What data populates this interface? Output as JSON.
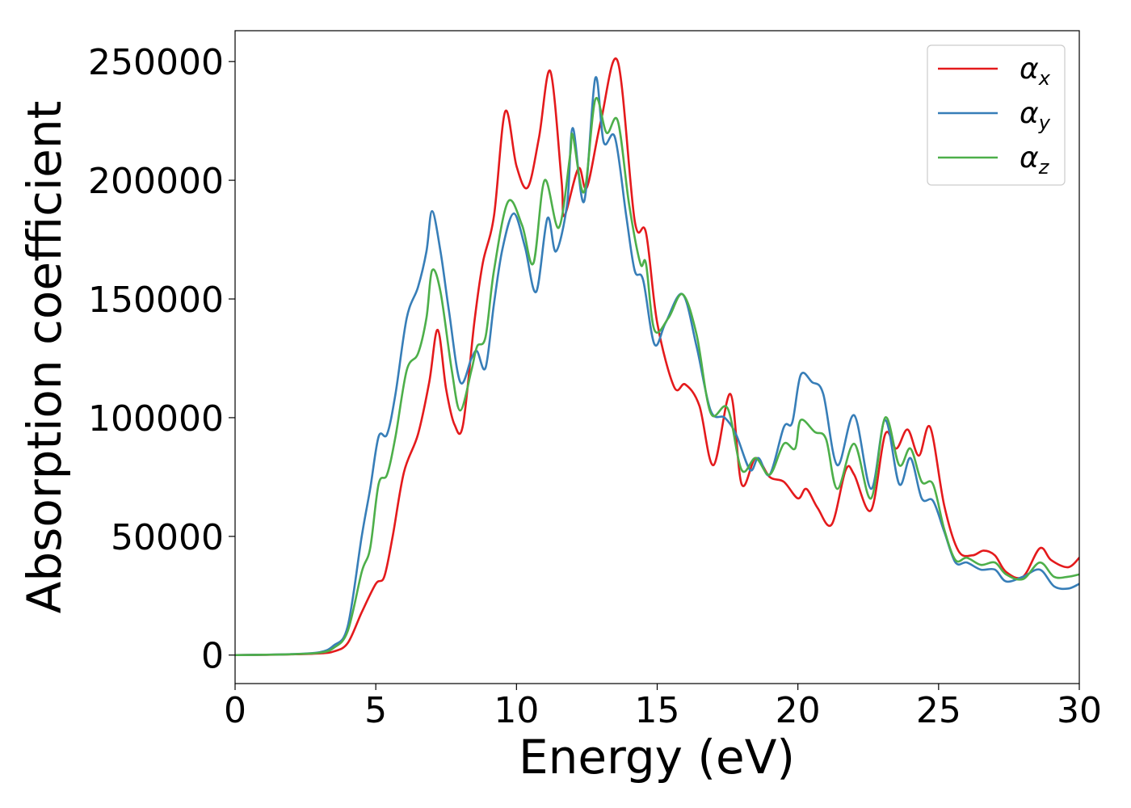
{
  "chart_data": {
    "type": "line",
    "title": "",
    "xlabel": "Energy (eV)",
    "ylabel": "Absorption coefficient",
    "xlim": [
      0,
      30
    ],
    "ylim": [
      -12000,
      263000
    ],
    "x_ticks": [
      "0",
      "5",
      "10",
      "15",
      "20",
      "25",
      "30"
    ],
    "y_ticks": [
      "0",
      "50000",
      "100000",
      "150000",
      "200000",
      "250000"
    ],
    "grid": false,
    "legend_position": "top-right",
    "series": [
      {
        "name": "α",
        "subscript": "x",
        "color": "#e41a1c",
        "points": [
          [
            0,
            0
          ],
          [
            1,
            100
          ],
          [
            2,
            300
          ],
          [
            3,
            700
          ],
          [
            3.5,
            1500
          ],
          [
            4,
            5000
          ],
          [
            4.5,
            18000
          ],
          [
            5,
            30000
          ],
          [
            5.3,
            33000
          ],
          [
            5.6,
            50000
          ],
          [
            6,
            77000
          ],
          [
            6.5,
            93000
          ],
          [
            6.9,
            115000
          ],
          [
            7.2,
            137000
          ],
          [
            7.5,
            112000
          ],
          [
            7.8,
            97000
          ],
          [
            8.1,
            97000
          ],
          [
            8.5,
            140000
          ],
          [
            8.8,
            165000
          ],
          [
            9.2,
            185000
          ],
          [
            9.6,
            229000
          ],
          [
            10.0,
            206000
          ],
          [
            10.4,
            197000
          ],
          [
            10.8,
            218000
          ],
          [
            11.2,
            246000
          ],
          [
            11.6,
            200000
          ],
          [
            11.7,
            185000
          ],
          [
            12.2,
            205000
          ],
          [
            12.5,
            197000
          ],
          [
            13.0,
            225000
          ],
          [
            13.6,
            250000
          ],
          [
            14.2,
            183000
          ],
          [
            14.6,
            178000
          ],
          [
            15.0,
            140000
          ],
          [
            15.6,
            113000
          ],
          [
            16.0,
            114000
          ],
          [
            16.5,
            105000
          ],
          [
            17.0,
            80000
          ],
          [
            17.6,
            110000
          ],
          [
            18.0,
            72000
          ],
          [
            18.5,
            83000
          ],
          [
            19.0,
            75000
          ],
          [
            19.5,
            73000
          ],
          [
            20.0,
            66000
          ],
          [
            20.3,
            70000
          ],
          [
            20.7,
            62000
          ],
          [
            21.2,
            55000
          ],
          [
            21.7,
            78000
          ],
          [
            22.0,
            76000
          ],
          [
            22.6,
            61000
          ],
          [
            23.1,
            93000
          ],
          [
            23.5,
            87000
          ],
          [
            23.9,
            95000
          ],
          [
            24.3,
            84000
          ],
          [
            24.7,
            96000
          ],
          [
            25.2,
            63000
          ],
          [
            25.7,
            44000
          ],
          [
            26.2,
            42000
          ],
          [
            26.6,
            44000
          ],
          [
            27.0,
            42000
          ],
          [
            27.4,
            35000
          ],
          [
            28.0,
            33000
          ],
          [
            28.6,
            45000
          ],
          [
            29.0,
            40000
          ],
          [
            29.6,
            37000
          ],
          [
            30,
            41000
          ]
        ]
      },
      {
        "name": "α",
        "subscript": "y",
        "color": "#377eb8",
        "points": [
          [
            0,
            0
          ],
          [
            1,
            150
          ],
          [
            2,
            400
          ],
          [
            3,
            1200
          ],
          [
            3.5,
            4000
          ],
          [
            4,
            12000
          ],
          [
            4.5,
            50000
          ],
          [
            4.8,
            70000
          ],
          [
            5.1,
            92000
          ],
          [
            5.4,
            93000
          ],
          [
            5.7,
            110000
          ],
          [
            6.1,
            142000
          ],
          [
            6.5,
            155000
          ],
          [
            6.8,
            170000
          ],
          [
            7.0,
            187000
          ],
          [
            7.3,
            170000
          ],
          [
            7.6,
            145000
          ],
          [
            8.0,
            115000
          ],
          [
            8.4,
            125000
          ],
          [
            8.6,
            128000
          ],
          [
            8.9,
            121000
          ],
          [
            9.2,
            148000
          ],
          [
            9.5,
            171000
          ],
          [
            9.9,
            186000
          ],
          [
            10.3,
            172000
          ],
          [
            10.7,
            153000
          ],
          [
            11.1,
            184000
          ],
          [
            11.4,
            170000
          ],
          [
            11.8,
            190000
          ],
          [
            12.0,
            222000
          ],
          [
            12.4,
            191000
          ],
          [
            12.8,
            243000
          ],
          [
            13.1,
            216000
          ],
          [
            13.5,
            218000
          ],
          [
            13.9,
            185000
          ],
          [
            14.2,
            162000
          ],
          [
            14.5,
            158000
          ],
          [
            14.9,
            131000
          ],
          [
            15.3,
            140000
          ],
          [
            15.9,
            152000
          ],
          [
            16.4,
            130000
          ],
          [
            16.9,
            103000
          ],
          [
            17.4,
            100000
          ],
          [
            17.8,
            93000
          ],
          [
            18.3,
            78000
          ],
          [
            18.6,
            83000
          ],
          [
            19.0,
            76000
          ],
          [
            19.5,
            96000
          ],
          [
            19.8,
            98000
          ],
          [
            20.1,
            118000
          ],
          [
            20.5,
            115000
          ],
          [
            20.9,
            110000
          ],
          [
            21.4,
            80000
          ],
          [
            22.0,
            101000
          ],
          [
            22.6,
            70000
          ],
          [
            23.1,
            99000
          ],
          [
            23.6,
            72000
          ],
          [
            24.0,
            83000
          ],
          [
            24.4,
            66000
          ],
          [
            24.8,
            65000
          ],
          [
            25.2,
            52000
          ],
          [
            25.6,
            39000
          ],
          [
            26.0,
            39000
          ],
          [
            26.5,
            36000
          ],
          [
            27.0,
            36000
          ],
          [
            27.4,
            31000
          ],
          [
            28.0,
            33000
          ],
          [
            28.6,
            36000
          ],
          [
            29.1,
            29000
          ],
          [
            29.6,
            28000
          ],
          [
            30,
            30000
          ]
        ]
      },
      {
        "name": "α",
        "subscript": "z",
        "color": "#4daf4a",
        "points": [
          [
            0,
            0
          ],
          [
            1,
            130
          ],
          [
            2,
            350
          ],
          [
            3,
            1000
          ],
          [
            3.5,
            3000
          ],
          [
            4,
            10000
          ],
          [
            4.5,
            35000
          ],
          [
            4.8,
            45000
          ],
          [
            5.1,
            72000
          ],
          [
            5.4,
            76000
          ],
          [
            5.7,
            92000
          ],
          [
            6.1,
            120000
          ],
          [
            6.5,
            127000
          ],
          [
            6.8,
            142000
          ],
          [
            7.0,
            162000
          ],
          [
            7.3,
            153000
          ],
          [
            7.7,
            120000
          ],
          [
            8.0,
            103000
          ],
          [
            8.4,
            120000
          ],
          [
            8.6,
            130000
          ],
          [
            8.9,
            134000
          ],
          [
            9.2,
            162000
          ],
          [
            9.7,
            191000
          ],
          [
            10.2,
            181000
          ],
          [
            10.6,
            165000
          ],
          [
            11.0,
            200000
          ],
          [
            11.5,
            180000
          ],
          [
            11.9,
            210000
          ],
          [
            12.0,
            219000
          ],
          [
            12.4,
            195000
          ],
          [
            12.8,
            234000
          ],
          [
            13.2,
            220000
          ],
          [
            13.6,
            225000
          ],
          [
            14.0,
            190000
          ],
          [
            14.4,
            165000
          ],
          [
            14.6,
            165000
          ],
          [
            14.9,
            137000
          ],
          [
            15.4,
            142000
          ],
          [
            15.9,
            152000
          ],
          [
            16.4,
            135000
          ],
          [
            16.9,
            102000
          ],
          [
            17.5,
            104000
          ],
          [
            18.0,
            78000
          ],
          [
            18.5,
            83000
          ],
          [
            19.0,
            76000
          ],
          [
            19.5,
            89000
          ],
          [
            19.9,
            87000
          ],
          [
            20.1,
            99000
          ],
          [
            20.6,
            94000
          ],
          [
            21.0,
            91000
          ],
          [
            21.4,
            70000
          ],
          [
            22.0,
            89000
          ],
          [
            22.6,
            66000
          ],
          [
            23.1,
            100000
          ],
          [
            23.6,
            80000
          ],
          [
            24.0,
            87000
          ],
          [
            24.4,
            73000
          ],
          [
            24.8,
            72000
          ],
          [
            25.2,
            53000
          ],
          [
            25.6,
            40000
          ],
          [
            26.0,
            41000
          ],
          [
            26.5,
            38000
          ],
          [
            27.0,
            39000
          ],
          [
            27.4,
            34000
          ],
          [
            28.0,
            32000
          ],
          [
            28.6,
            39000
          ],
          [
            29.1,
            33000
          ],
          [
            29.6,
            33000
          ],
          [
            30,
            34000
          ]
        ]
      }
    ]
  }
}
